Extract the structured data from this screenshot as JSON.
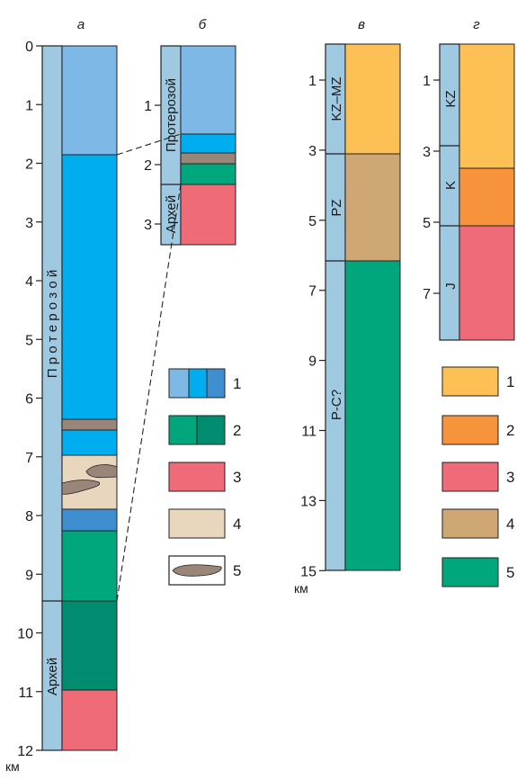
{
  "panels": {
    "a": {
      "letter": "а",
      "ticks": [
        "0",
        "1",
        "2",
        "3",
        "4",
        "5",
        "6",
        "7",
        "8",
        "9",
        "10",
        "11",
        "12"
      ],
      "unit": "км",
      "eras": {
        "upper": "П р о т е р о з о й",
        "lower": "Архей"
      }
    },
    "b": {
      "letter": "б",
      "ticks": [
        "1",
        "2",
        "3"
      ],
      "eras": {
        "upper": "Протерозой",
        "lower": "Архей"
      }
    },
    "v": {
      "letter": "в",
      "ticks": [
        "1",
        "3",
        "5",
        "7",
        "9",
        "11",
        "13",
        "15"
      ],
      "unit": "км",
      "eras": {
        "upper": "KZ–MZ",
        "middle": "PZ",
        "lower": "P-C?"
      }
    },
    "g": {
      "letter": "г",
      "ticks": [
        "1",
        "3",
        "5",
        "7"
      ],
      "eras": {
        "upper": "KZ",
        "middle": "K",
        "lower": "J"
      }
    }
  },
  "legend_left": [
    "1",
    "2",
    "3",
    "4",
    "5"
  ],
  "legend_right": [
    "1",
    "2",
    "3",
    "4",
    "5"
  ],
  "colors": {
    "era_column": "#9ec9e0",
    "light_blue": "#7db8e6",
    "bright_blue": "#00aeef",
    "mid_blue": "#3f8ed0",
    "green": "#00a67c",
    "dark_green": "#008c6e",
    "red": "#f06b78",
    "beige": "#e8d7bd",
    "grey_brown": "#9a8679",
    "yellow": "#fdc055",
    "orange": "#f7933a",
    "tan": "#cfa774"
  }
}
